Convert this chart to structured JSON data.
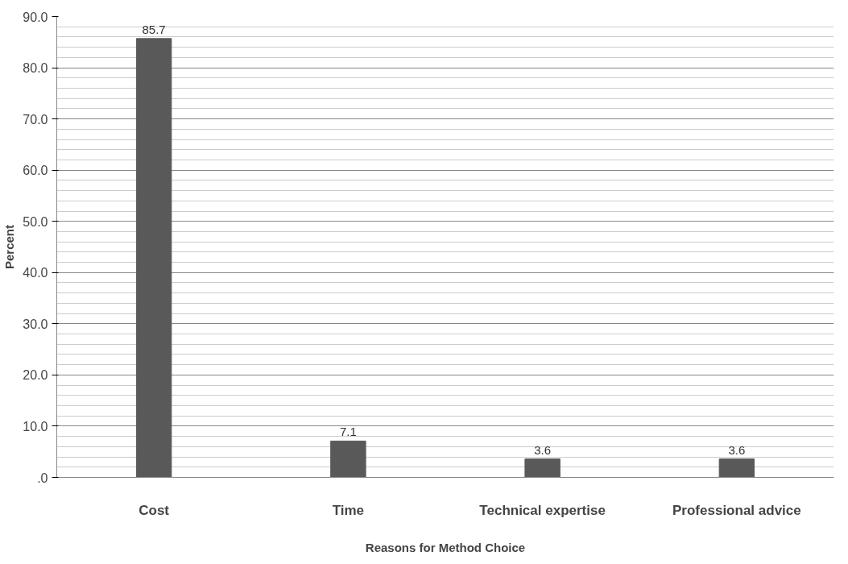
{
  "chart_data": {
    "type": "bar",
    "xlabel": "Reasons for Method Choice",
    "ylabel": "Percent",
    "categories": [
      "Cost",
      "Time",
      "Technical expertise",
      "Professional advice"
    ],
    "values": [
      85.7,
      7.1,
      3.6,
      3.6
    ],
    "color": "#595959",
    "data_labels": true,
    "grid": "y",
    "ylim": [
      0,
      90
    ],
    "yticks": [
      {
        "value": 0,
        "label": ".0"
      },
      {
        "value": 10,
        "label": "10.0"
      },
      {
        "value": 20,
        "label": "20.0"
      },
      {
        "value": 30,
        "label": "30.0"
      },
      {
        "value": 40,
        "label": "40.0"
      },
      {
        "value": 50,
        "label": "50.0"
      },
      {
        "value": 60,
        "label": "60.0"
      },
      {
        "value": 70,
        "label": "70.0"
      },
      {
        "value": 80,
        "label": "80.0"
      },
      {
        "value": 90,
        "label": "90.0"
      }
    ]
  }
}
